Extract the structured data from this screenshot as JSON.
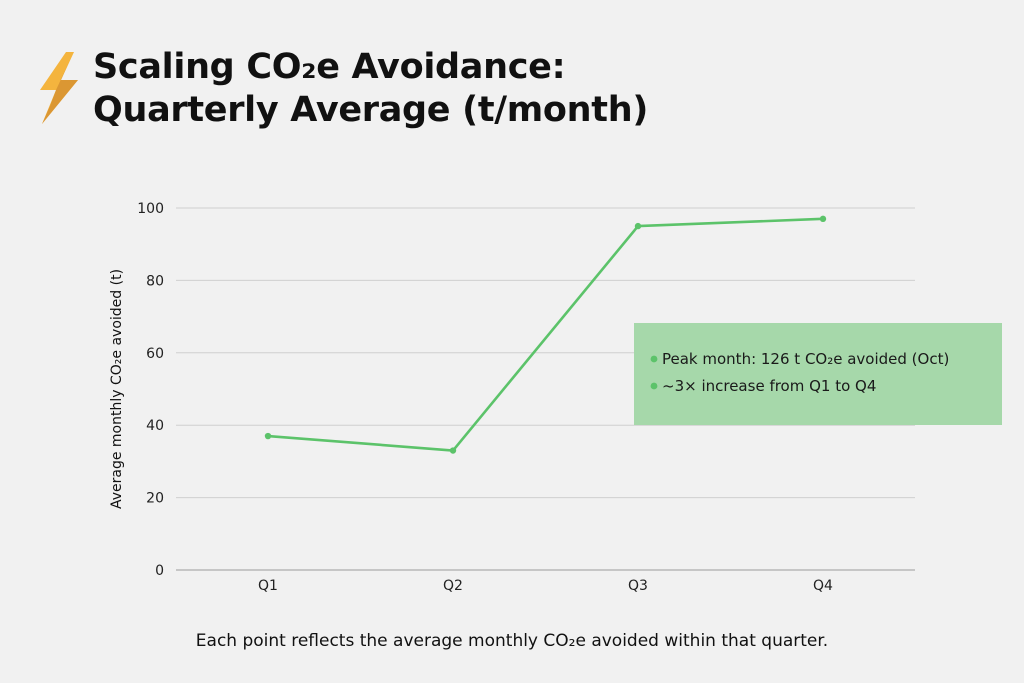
{
  "header": {
    "title_line1": "Scaling CO₂e Avoidance:",
    "title_line2": "Quarterly Average (t/month)",
    "icon": "lightning-bolt-icon"
  },
  "chart_data": {
    "type": "line",
    "categories": [
      "Q1",
      "Q2",
      "Q3",
      "Q4"
    ],
    "series": [
      {
        "values": [
          37,
          33,
          95,
          97
        ],
        "color": "#5cc36a"
      }
    ],
    "ylabel": "Average monthly CO₂e avoided (t)",
    "ylim": [
      0,
      100
    ],
    "yticks": [
      0,
      20,
      40,
      60,
      80,
      100
    ],
    "grid": true,
    "annotations": [
      "Peak month: 126 t CO₂e avoided (Oct)",
      "~3× increase from Q1 to Q4"
    ],
    "annotation_box_color": "#a6d8aa"
  },
  "caption": "Each point reflects the average monthly CO₂e avoided within that quarter."
}
